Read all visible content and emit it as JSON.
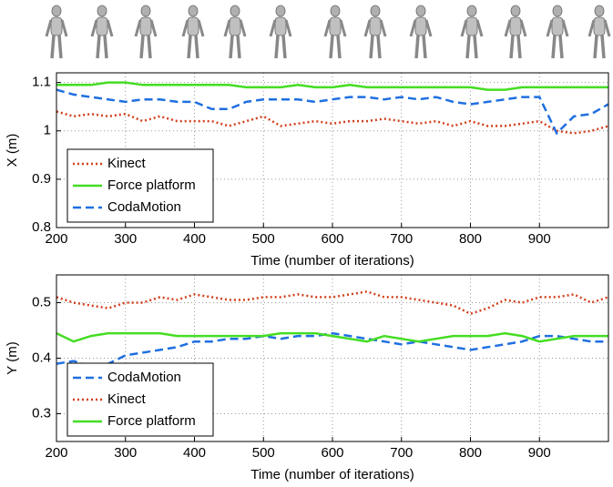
{
  "chart_data": [
    {
      "type": "line",
      "xlabel": "Time (number of iterations)",
      "ylabel": "X (m)",
      "x": [
        200,
        225,
        250,
        275,
        300,
        325,
        350,
        375,
        400,
        425,
        450,
        475,
        500,
        525,
        550,
        575,
        600,
        625,
        650,
        675,
        700,
        725,
        750,
        775,
        800,
        825,
        850,
        875,
        900,
        925,
        950,
        975,
        1000
      ],
      "xlim": [
        200,
        1000
      ],
      "xticks": [
        200,
        300,
        400,
        500,
        600,
        700,
        800,
        900
      ],
      "ylim": [
        0.8,
        1.12
      ],
      "yticks": [
        0.8,
        0.9,
        1,
        1.1
      ],
      "grid": true,
      "legend": "lower left",
      "series": [
        {
          "name": "Kinect",
          "color": "#d2401c",
          "style": "dotted",
          "values": [
            1.04,
            1.03,
            1.035,
            1.03,
            1.035,
            1.02,
            1.03,
            1.02,
            1.02,
            1.02,
            1.01,
            1.02,
            1.03,
            1.01,
            1.015,
            1.02,
            1.015,
            1.02,
            1.02,
            1.025,
            1.02,
            1.015,
            1.02,
            1.01,
            1.02,
            1.01,
            1.01,
            1.015,
            1.02,
            1.0,
            0.995,
            1.0,
            1.01
          ]
        },
        {
          "name": "Force platform",
          "color": "#44dd22",
          "style": "solid",
          "values": [
            1.095,
            1.095,
            1.095,
            1.1,
            1.1,
            1.095,
            1.095,
            1.095,
            1.095,
            1.095,
            1.095,
            1.09,
            1.09,
            1.09,
            1.095,
            1.09,
            1.09,
            1.095,
            1.09,
            1.09,
            1.09,
            1.09,
            1.09,
            1.09,
            1.09,
            1.085,
            1.085,
            1.09,
            1.09,
            1.09,
            1.09,
            1.09,
            1.09
          ]
        },
        {
          "name": "CodaMotion",
          "color": "#1f6fe0",
          "style": "dashed",
          "values": [
            1.085,
            1.075,
            1.07,
            1.065,
            1.06,
            1.065,
            1.065,
            1.06,
            1.06,
            1.045,
            1.045,
            1.06,
            1.065,
            1.065,
            1.065,
            1.06,
            1.065,
            1.07,
            1.07,
            1.065,
            1.07,
            1.065,
            1.07,
            1.06,
            1.055,
            1.06,
            1.065,
            1.07,
            1.07,
            0.995,
            1.03,
            1.035,
            1.055
          ]
        }
      ]
    },
    {
      "type": "line",
      "xlabel": "Time (number of iterations)",
      "ylabel": "Y (m)",
      "x": [
        200,
        225,
        250,
        275,
        300,
        325,
        350,
        375,
        400,
        425,
        450,
        475,
        500,
        525,
        550,
        575,
        600,
        625,
        650,
        675,
        700,
        725,
        750,
        775,
        800,
        825,
        850,
        875,
        900,
        925,
        950,
        975,
        1000
      ],
      "xlim": [
        200,
        1000
      ],
      "xticks": [
        200,
        300,
        400,
        500,
        600,
        700,
        800,
        900
      ],
      "ylim": [
        0.25,
        0.55
      ],
      "yticks": [
        0.3,
        0.4,
        0.5
      ],
      "grid": true,
      "legend": "lower left",
      "series": [
        {
          "name": "CodaMotion",
          "color": "#1f6fe0",
          "style": "dashed",
          "values": [
            0.39,
            0.395,
            0.385,
            0.39,
            0.405,
            0.41,
            0.415,
            0.42,
            0.43,
            0.43,
            0.435,
            0.435,
            0.44,
            0.435,
            0.44,
            0.44,
            0.445,
            0.44,
            0.435,
            0.43,
            0.425,
            0.43,
            0.425,
            0.42,
            0.415,
            0.42,
            0.425,
            0.43,
            0.44,
            0.44,
            0.435,
            0.43,
            0.43
          ]
        },
        {
          "name": "Kinect",
          "color": "#d2401c",
          "style": "dotted",
          "values": [
            0.51,
            0.5,
            0.495,
            0.49,
            0.5,
            0.5,
            0.51,
            0.505,
            0.515,
            0.51,
            0.505,
            0.505,
            0.51,
            0.51,
            0.515,
            0.51,
            0.51,
            0.515,
            0.52,
            0.51,
            0.51,
            0.505,
            0.5,
            0.495,
            0.48,
            0.49,
            0.505,
            0.5,
            0.51,
            0.51,
            0.515,
            0.5,
            0.51
          ]
        },
        {
          "name": "Force platform",
          "color": "#44dd22",
          "style": "solid",
          "values": [
            0.445,
            0.43,
            0.44,
            0.445,
            0.445,
            0.445,
            0.445,
            0.44,
            0.44,
            0.44,
            0.44,
            0.44,
            0.44,
            0.445,
            0.445,
            0.445,
            0.44,
            0.435,
            0.43,
            0.44,
            0.435,
            0.43,
            0.435,
            0.44,
            0.44,
            0.44,
            0.445,
            0.44,
            0.43,
            0.435,
            0.44,
            0.44,
            0.44
          ]
        }
      ]
    }
  ]
}
